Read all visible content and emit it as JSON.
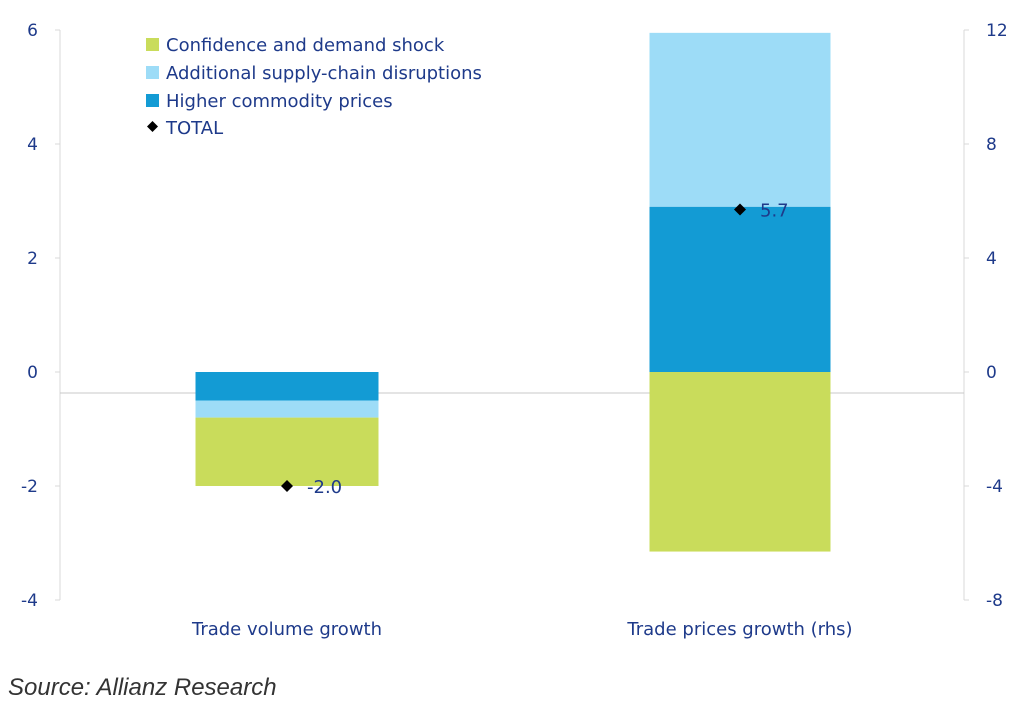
{
  "chart_data": {
    "type": "bar",
    "stacked": true,
    "categories": [
      "Trade volume growth",
      "Trade prices growth (rhs)"
    ],
    "category_axis": [
      "left",
      "right"
    ],
    "series": [
      {
        "name": "Confidence and demand shock",
        "color": "#c9dc5b",
        "values": [
          -1.2,
          -6.3
        ]
      },
      {
        "name": "Additional supply-chain disruptions",
        "color": "#9ddcf7",
        "values": [
          -0.3,
          6.1
        ]
      },
      {
        "name": "Higher commodity prices",
        "color": "#139bd4",
        "values": [
          -0.5,
          5.8
        ]
      }
    ],
    "total": {
      "name": "TOTAL",
      "values": [
        -2.0,
        5.7
      ],
      "labels": [
        "-2.0",
        "5.7"
      ],
      "color": "#000000"
    },
    "left_axis": {
      "ylim": [
        -4,
        6
      ],
      "ticks": [
        -4,
        -2,
        0,
        2,
        4,
        6
      ],
      "tick_labels": [
        "-4",
        "-2",
        "0",
        "2",
        "4",
        "6"
      ]
    },
    "right_axis": {
      "ylim": [
        -8,
        12
      ],
      "ticks": [
        -8,
        -4,
        0,
        4,
        8,
        12
      ],
      "tick_labels": [
        "-8",
        "-4",
        "0",
        "4",
        "8",
        "12"
      ]
    },
    "legend_position": "top-left",
    "grid": false
  },
  "source": "Source: Allianz Research"
}
